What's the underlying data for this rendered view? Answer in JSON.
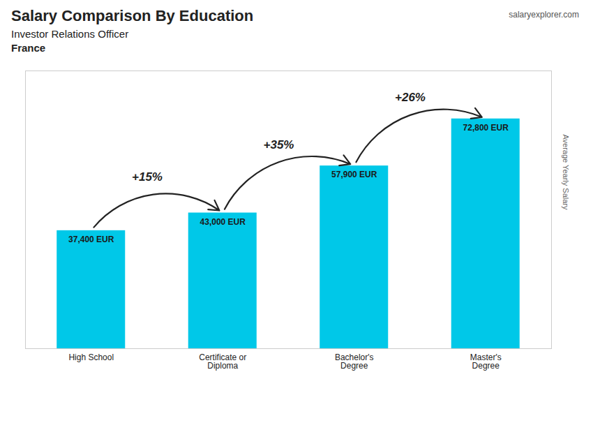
{
  "chart_data": {
    "type": "bar",
    "title": "Salary Comparison By Education",
    "subtitle": "Investor Relations Officer",
    "country": "France",
    "source": "salaryexplorer.com",
    "ylabel": "Average Yearly Salary",
    "categories": [
      "High School",
      "Certificate or\nDiploma",
      "Bachelor's\nDegree",
      "Master's\nDegree"
    ],
    "values": [
      37400,
      43000,
      57900,
      72800
    ],
    "value_labels": [
      "37,400 EUR",
      "43,000 EUR",
      "57,900 EUR",
      "72,800 EUR"
    ],
    "data_labels": true,
    "annotations": [
      "+15%",
      "+35%",
      "+26%"
    ],
    "color": "#00c8e8",
    "ylim": [
      0,
      88000
    ],
    "tick_labels": "x",
    "grid": false
  }
}
